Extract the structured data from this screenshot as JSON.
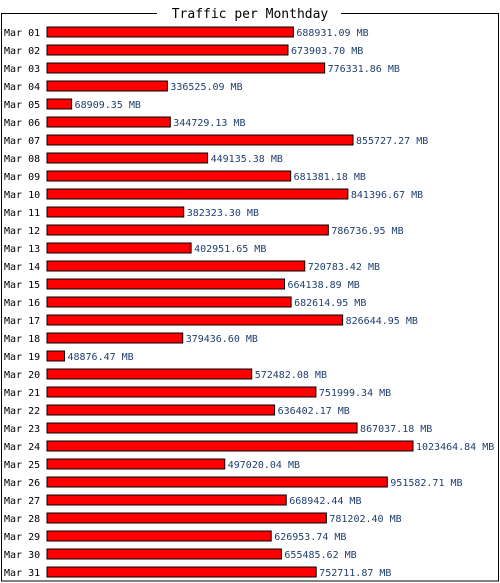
{
  "chart_data": {
    "type": "bar",
    "orientation": "horizontal",
    "title": "Traffic per Monthday",
    "unit": "MB",
    "bar_color": "#ff0000",
    "label_color": "#1f3f6f",
    "categories": [
      "Mar 01",
      "Mar 02",
      "Mar 03",
      "Mar 04",
      "Mar 05",
      "Mar 06",
      "Mar 07",
      "Mar 08",
      "Mar 09",
      "Mar 10",
      "Mar 11",
      "Mar 12",
      "Mar 13",
      "Mar 14",
      "Mar 15",
      "Mar 16",
      "Mar 17",
      "Mar 18",
      "Mar 19",
      "Mar 20",
      "Mar 21",
      "Mar 22",
      "Mar 23",
      "Mar 24",
      "Mar 25",
      "Mar 26",
      "Mar 27",
      "Mar 28",
      "Mar 29",
      "Mar 30",
      "Mar 31"
    ],
    "values": [
      688931.09,
      673903.7,
      776331.86,
      336525.09,
      68909.35,
      344729.13,
      855727.27,
      449135.38,
      681381.18,
      841396.67,
      382323.3,
      786736.95,
      402951.65,
      720783.42,
      664138.89,
      682614.95,
      826644.95,
      379436.6,
      48876.47,
      572482.08,
      751999.34,
      636402.17,
      867037.18,
      1023464.84,
      497020.04,
      951582.71,
      668942.44,
      781202.4,
      626953.74,
      655485.62,
      752711.87
    ],
    "value_labels": [
      "688931.09 MB",
      "673903.70 MB",
      "776331.86 MB",
      "336525.09 MB",
      "68909.35 MB",
      "344729.13 MB",
      "855727.27 MB",
      "449135.38 MB",
      "681381.18 MB",
      "841396.67 MB",
      "382323.30 MB",
      "786736.95 MB",
      "402951.65 MB",
      "720783.42 MB",
      "664138.89 MB",
      "682614.95 MB",
      "826644.95 MB",
      "379436.60 MB",
      "48876.47 MB",
      "572482.08 MB",
      "751999.34 MB",
      "636402.17 MB",
      "867037.18 MB",
      "1023464.84 MB",
      "497020.04 MB",
      "951582.71 MB",
      "668942.44 MB",
      "781202.40 MB",
      "626953.74 MB",
      "655485.62 MB",
      "752711.87 MB"
    ],
    "xlim": [
      0,
      1023464.84
    ],
    "grid": false,
    "legend": "none"
  }
}
